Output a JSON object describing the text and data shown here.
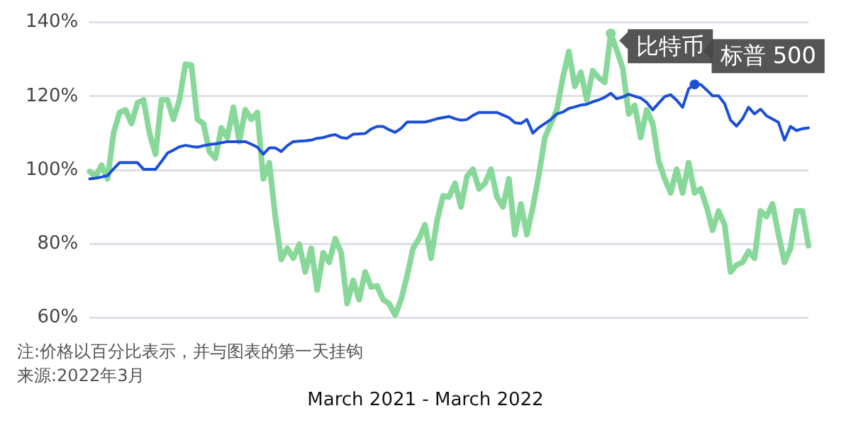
{
  "chart_data": {
    "type": "line",
    "xlabel": "March 2021 - March 2022",
    "annotations": [
      "注:价格以百分比表示，并与图表的第一天挂钩",
      "来源:2022年3月"
    ],
    "categories": [
      null,
      null,
      null,
      null,
      null,
      null,
      null,
      null,
      null,
      null,
      null,
      null,
      null,
      null,
      null,
      null,
      null,
      null,
      null,
      null,
      null,
      null,
      null,
      null,
      null,
      null,
      null,
      null,
      null,
      null,
      null,
      null,
      null,
      null,
      null,
      null,
      null,
      null,
      null,
      null,
      null,
      null,
      null,
      null,
      null,
      null,
      null,
      null,
      null,
      null,
      null,
      null,
      null,
      null,
      null,
      null,
      null,
      null,
      null,
      null,
      null,
      null,
      null,
      null,
      null,
      null,
      null,
      null,
      null,
      null,
      null,
      null,
      null,
      null,
      null,
      null,
      null,
      null,
      null,
      null,
      null,
      null,
      null,
      null,
      null,
      null,
      null,
      null,
      null,
      null,
      null,
      null,
      null,
      null,
      null,
      null,
      null,
      null,
      null,
      null,
      null,
      null,
      null,
      null,
      null,
      null,
      null,
      null,
      null,
      null,
      null,
      null,
      null,
      null,
      null,
      null,
      null,
      null,
      null,
      null,
      null
    ],
    "ylim": [
      60,
      140
    ],
    "yticks": [
      {
        "value": 60,
        "label": "60%"
      },
      {
        "value": 80,
        "label": "80%"
      },
      {
        "value": 100,
        "label": "100%"
      },
      {
        "value": 120,
        "label": "120%"
      },
      {
        "value": 140,
        "label": "140%"
      }
    ],
    "grid": "y",
    "legend": false,
    "tick_labels": "y",
    "marker": "none",
    "line_style": "solid",
    "series": [
      {
        "name": "比特币",
        "color": "#88d89a",
        "values": [
          99.6,
          98.3,
          101.3,
          97.6,
          110,
          115.6,
          116.3,
          112.6,
          118.2,
          119,
          110,
          104.3,
          119,
          119,
          113.7,
          119,
          128.7,
          128.4,
          113.7,
          112.6,
          105,
          103.2,
          111.4,
          108.8,
          117,
          107.7,
          116.3,
          113.7,
          115.6,
          97.6,
          102,
          87.4,
          75.8,
          78.8,
          76.1,
          79.9,
          72.4,
          78.8,
          67.5,
          77.6,
          75,
          81.4,
          77.6,
          63.8,
          70.1,
          64.9,
          72.4,
          68.3,
          68.6,
          64.9,
          63.8,
          60.7,
          64.9,
          71.3,
          78.8,
          81.4,
          85.2,
          76.1,
          86.3,
          93,
          92.7,
          96.4,
          90,
          98.3,
          100.2,
          94.9,
          96.4,
          100.2,
          92.7,
          90,
          97.6,
          82.5,
          90.8,
          82.5,
          90,
          98.7,
          108.8,
          112.6,
          116.3,
          125,
          132.1,
          122.7,
          126.5,
          119,
          126.9,
          125,
          123.8,
          137,
          132.5,
          127.6,
          115.2,
          117.5,
          108.8,
          116.3,
          112.6,
          102.4,
          97.6,
          93.8,
          100.2,
          93.8,
          102,
          93.8,
          94.9,
          90,
          83.7,
          88.9,
          85.2,
          72.4,
          74.3,
          75,
          78,
          76.1,
          88.9,
          87.4,
          90.8,
          82.5,
          75,
          78.8,
          88.9,
          88.9,
          79.5
        ]
      },
      {
        "name": "标普 500",
        "color": "#1a4fd6",
        "values": [
          97.6,
          97.8,
          98.1,
          98.5,
          100.3,
          102,
          102,
          102,
          102,
          100.2,
          100.2,
          100.2,
          102.3,
          104.6,
          105.4,
          106.3,
          106.7,
          106.4,
          106.2,
          106.6,
          106.9,
          107.1,
          107.4,
          107.7,
          107.7,
          107.7,
          107.7,
          107,
          106.2,
          104.3,
          106,
          106,
          105,
          106.6,
          107.7,
          107.8,
          107.9,
          108.1,
          108.6,
          108.8,
          109.3,
          109.6,
          108.8,
          108.6,
          109.7,
          109.8,
          109.9,
          111.1,
          111.8,
          111.8,
          110.9,
          110.2,
          111.3,
          113,
          113,
          113,
          113,
          113.4,
          113.9,
          114.2,
          114.5,
          113.9,
          113.5,
          113.7,
          114.8,
          115.6,
          115.6,
          115.6,
          115.6,
          114.9,
          114.2,
          112.8,
          112.6,
          113.7,
          110,
          111.5,
          112.6,
          113.7,
          115.2,
          115.7,
          116.7,
          117.1,
          117.6,
          117.8,
          118.5,
          119,
          119.7,
          120.8,
          119.3,
          119.8,
          120.5,
          120,
          119.5,
          118.3,
          116.3,
          118.1,
          119.9,
          120.4,
          118.9,
          117,
          122,
          123.2,
          123.2,
          121.7,
          120.1,
          120.1,
          118,
          113.5,
          111.9,
          113.9,
          117,
          115.2,
          116.5,
          114.7,
          113.8,
          112.9,
          108.1,
          111.8,
          110.7,
          111.2,
          111.4
        ]
      }
    ]
  }
}
